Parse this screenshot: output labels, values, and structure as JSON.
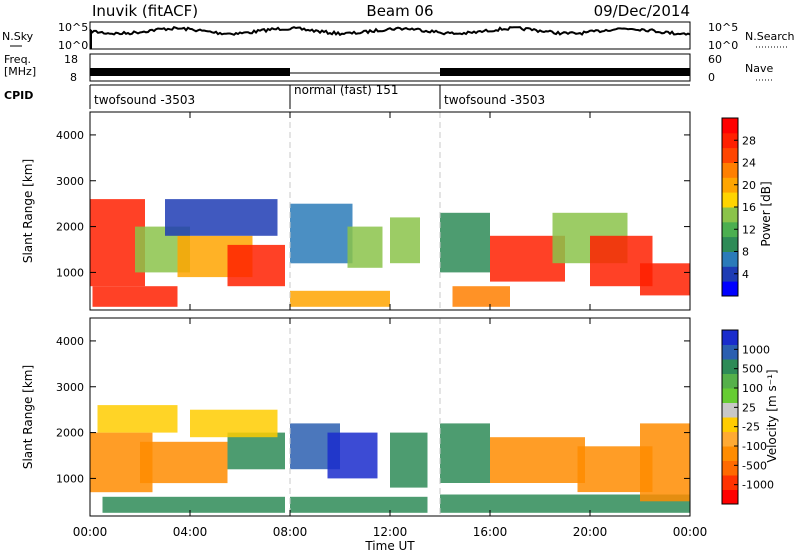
{
  "header": {
    "station": "Inuvik (fitACF)",
    "beam": "Beam 06",
    "date": "09/Dec/2014"
  },
  "noise_panel": {
    "left_label": "N.Sky",
    "right_label": "N.Search",
    "left_ticks": [
      "10^5",
      "10^0"
    ],
    "right_ticks": [
      "10^5",
      "10^0"
    ]
  },
  "freq_panel": {
    "left_label_1": "Freq.",
    "left_label_2": "[MHz]",
    "right_label": "Nave",
    "left_ticks": [
      "18",
      "8"
    ],
    "right_ticks": [
      "60",
      "0"
    ]
  },
  "cpid": {
    "label": "CPID",
    "segments": [
      {
        "start_h": 0,
        "end_h": 8,
        "name": "twofsound -3503"
      },
      {
        "start_h": 8,
        "end_h": 14,
        "name": "normal (fast) 151"
      },
      {
        "start_h": 14,
        "end_h": 24,
        "name": "twofsound -3503"
      }
    ]
  },
  "axes": {
    "xlabel": "Time UT",
    "ylabel": "Slant Range [km]",
    "x_tick_labels": [
      "00:00",
      "04:00",
      "08:00",
      "12:00",
      "16:00",
      "20:00",
      "00:00"
    ],
    "y_tick_labels": [
      "1000",
      "2000",
      "3000",
      "4000"
    ]
  },
  "power_colorbar": {
    "label": "Power [dB]",
    "ticks": [
      "4",
      "8",
      "12",
      "16",
      "20",
      "24",
      "28"
    ],
    "colors": [
      "#0000ff",
      "#1e3cb4",
      "#2b7bb9",
      "#2e8b57",
      "#4caf50",
      "#8bc34a",
      "#ffd400",
      "#ffa500",
      "#ff7f00",
      "#ff4500",
      "#ff2000",
      "#ff0000"
    ]
  },
  "velocity_colorbar": {
    "label": "Velocity [m s⁻¹]",
    "ticks": [
      "1000",
      "500",
      "100",
      "25",
      "-25",
      "-100",
      "-500",
      "-1000"
    ],
    "colors": [
      "#1a2ccc",
      "#2b5fb0",
      "#2e8b57",
      "#55b04a",
      "#66cc33",
      "#c8c8c8",
      "#ffcc00",
      "#ffaa33",
      "#ff8c00",
      "#ff6a00",
      "#ff3300",
      "#ff0000"
    ]
  },
  "chart_data": {
    "type": "heatmap",
    "x_range_hours": [
      0,
      24
    ],
    "y_range_km": [
      180,
      4500
    ],
    "dashed_lines_hours": [
      8,
      14
    ],
    "panels": [
      {
        "name": "Power",
        "range_note": "echo regions, power dB",
        "regions": [
          {
            "t0": 0.0,
            "t1": 2.2,
            "r0": 700,
            "r1": 2600,
            "v": 26
          },
          {
            "t0": 0.1,
            "t1": 3.5,
            "r0": 250,
            "r1": 700,
            "v": 24
          },
          {
            "t0": 1.8,
            "t1": 4.0,
            "r0": 1000,
            "r1": 2000,
            "v": 14
          },
          {
            "t0": 3.5,
            "t1": 6.5,
            "r0": 900,
            "r1": 1800,
            "v": 20
          },
          {
            "t0": 3.0,
            "t1": 7.5,
            "r0": 1800,
            "r1": 2600,
            "v": 8
          },
          {
            "t0": 5.5,
            "t1": 7.8,
            "r0": 700,
            "r1": 1600,
            "v": 24
          },
          {
            "t0": 8.0,
            "t1": 10.5,
            "r0": 1200,
            "r1": 2500,
            "v": 10
          },
          {
            "t0": 8.0,
            "t1": 12.0,
            "r0": 250,
            "r1": 600,
            "v": 20
          },
          {
            "t0": 10.3,
            "t1": 11.7,
            "r0": 1100,
            "r1": 2000,
            "v": 14
          },
          {
            "t0": 12.0,
            "t1": 13.2,
            "r0": 1200,
            "r1": 2200,
            "v": 14
          },
          {
            "t0": 14.0,
            "t1": 16.0,
            "r0": 1000,
            "r1": 2300,
            "v": 12
          },
          {
            "t0": 14.5,
            "t1": 16.8,
            "r0": 250,
            "r1": 700,
            "v": 22
          },
          {
            "t0": 16.0,
            "t1": 19.0,
            "r0": 800,
            "r1": 1800,
            "v": 26
          },
          {
            "t0": 18.5,
            "t1": 21.5,
            "r0": 1200,
            "r1": 2300,
            "v": 14
          },
          {
            "t0": 20.0,
            "t1": 22.5,
            "r0": 700,
            "r1": 1800,
            "v": 24
          },
          {
            "t0": 22.0,
            "t1": 24.0,
            "r0": 500,
            "r1": 1200,
            "v": 26
          }
        ]
      },
      {
        "name": "Velocity",
        "range_note": "echo regions, velocity m/s",
        "regions": [
          {
            "t0": 0.0,
            "t1": 2.5,
            "r0": 700,
            "r1": 2000,
            "v": -100
          },
          {
            "t0": 0.3,
            "t1": 3.5,
            "r0": 2000,
            "r1": 2600,
            "v": -25
          },
          {
            "t0": 2.0,
            "t1": 5.5,
            "r0": 900,
            "r1": 1800,
            "v": -100
          },
          {
            "t0": 0.5,
            "t1": 7.8,
            "r0": 250,
            "r1": 600,
            "v": 100
          },
          {
            "t0": 5.5,
            "t1": 7.8,
            "r0": 1200,
            "r1": 2000,
            "v": 100
          },
          {
            "t0": 4.0,
            "t1": 7.5,
            "r0": 1900,
            "r1": 2500,
            "v": -25
          },
          {
            "t0": 8.0,
            "t1": 10.0,
            "r0": 1200,
            "r1": 2200,
            "v": 500
          },
          {
            "t0": 9.5,
            "t1": 11.5,
            "r0": 1000,
            "r1": 2000,
            "v": 1000
          },
          {
            "t0": 8.0,
            "t1": 13.5,
            "r0": 250,
            "r1": 600,
            "v": 100
          },
          {
            "t0": 12.0,
            "t1": 13.5,
            "r0": 800,
            "r1": 2000,
            "v": 100
          },
          {
            "t0": 14.0,
            "t1": 16.0,
            "r0": 900,
            "r1": 2200,
            "v": 100
          },
          {
            "t0": 16.0,
            "t1": 19.8,
            "r0": 900,
            "r1": 1900,
            "v": -100
          },
          {
            "t0": 14.0,
            "t1": 24.0,
            "r0": 250,
            "r1": 650,
            "v": 100
          },
          {
            "t0": 19.5,
            "t1": 22.5,
            "r0": 700,
            "r1": 1700,
            "v": -100
          },
          {
            "t0": 22.0,
            "t1": 24.0,
            "r0": 500,
            "r1": 2200,
            "v": -100
          }
        ]
      }
    ]
  }
}
